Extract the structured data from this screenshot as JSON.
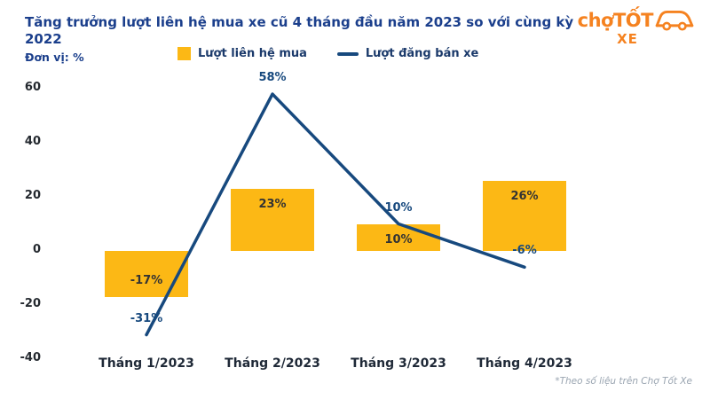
{
  "header": {
    "title": "Tăng trưởng lượt liên hệ mua xe cũ 4 tháng đầu năm 2023 so với cùng kỳ 2022",
    "unit_label": "Đơn vị: %"
  },
  "logo": {
    "part1": "chợ",
    "part2": "TỐT",
    "sub": "XE",
    "color": "#f58220"
  },
  "legend": [
    {
      "label": "Lượt liên hệ mua",
      "type": "bar",
      "color": "#fcb815"
    },
    {
      "label": "Lượt đăng bán xe",
      "type": "line",
      "color": "#17497e"
    }
  ],
  "footnote": "*Theo số liệu trên Chợ Tốt Xe",
  "chart_data": {
    "type": "bar+line",
    "title": "Tăng trưởng lượt liên hệ mua xe cũ 4 tháng đầu năm 2023 so với cùng kỳ 2022",
    "ylabel": "%",
    "categories": [
      "Tháng 1/2023",
      "Tháng 2/2023",
      "Tháng 3/2023",
      "Tháng 4/2023"
    ],
    "series": [
      {
        "name": "Lượt liên hệ mua",
        "type": "bar",
        "color": "#fcb815",
        "values": [
          -17,
          23,
          10,
          26
        ],
        "labels": [
          "-17%",
          "23%",
          "10%",
          "26%"
        ]
      },
      {
        "name": "Lượt đăng bán xe",
        "type": "line",
        "color": "#17497e",
        "values": [
          -31,
          58,
          10,
          -6
        ],
        "labels": [
          "-31%",
          "58%",
          "10%",
          "-6%"
        ]
      }
    ],
    "yticks": [
      60,
      40,
      20,
      0,
      -20,
      -40
    ],
    "ylim": [
      -40,
      60
    ],
    "grid": false,
    "legend_position": "top"
  }
}
